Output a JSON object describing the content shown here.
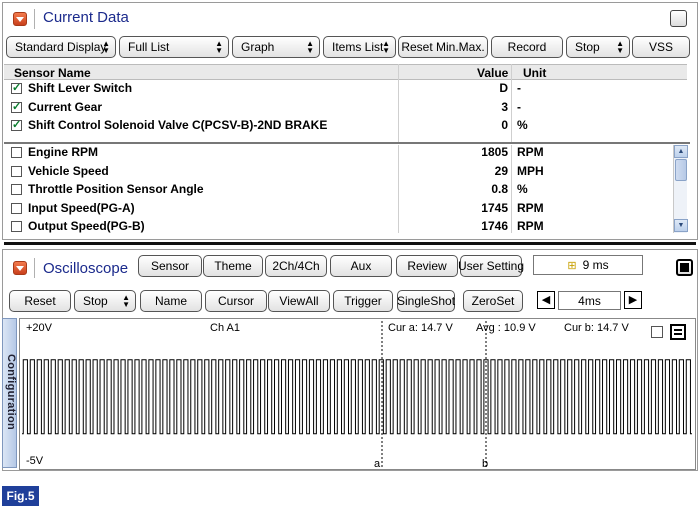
{
  "current_data": {
    "title": "Current Data",
    "toolbar": [
      {
        "label": "Standard Display",
        "dropdown": true
      },
      {
        "label": "Full List",
        "dropdown": true
      },
      {
        "label": "Graph",
        "dropdown": true
      },
      {
        "label": "Items List",
        "dropdown": true
      },
      {
        "label": "Reset Min.Max.",
        "dropdown": false
      },
      {
        "label": "Record",
        "dropdown": false
      },
      {
        "label": "Stop",
        "dropdown": true
      },
      {
        "label": "VSS",
        "dropdown": false
      }
    ],
    "columns": {
      "name": "Sensor Name",
      "value": "Value",
      "unit": "Unit"
    },
    "pinned_rows": [
      {
        "name": "Shift Lever Switch",
        "value": "D",
        "unit": "-",
        "checked": true
      },
      {
        "name": "Current Gear",
        "value": "3",
        "unit": "-",
        "checked": true
      },
      {
        "name": "Shift Control Solenoid Valve C(PCSV-B)-2ND BRAKE",
        "value": "0",
        "unit": "%",
        "checked": true
      }
    ],
    "rows": [
      {
        "name": "Engine RPM",
        "value": "1805",
        "unit": "RPM",
        "checked": false
      },
      {
        "name": "Vehicle Speed",
        "value": "29",
        "unit": "MPH",
        "checked": false
      },
      {
        "name": "Throttle Position Sensor Angle",
        "value": "0.8",
        "unit": "%",
        "checked": false
      },
      {
        "name": "Input Speed(PG-A)",
        "value": "1745",
        "unit": "RPM",
        "checked": false
      },
      {
        "name": "Output Speed(PG-B)",
        "value": "1746",
        "unit": "RPM",
        "checked": false
      }
    ]
  },
  "oscilloscope": {
    "title": "Oscilloscope",
    "toolbar1": [
      "Sensor",
      "Theme",
      "2Ch/4Ch",
      "Aux",
      "Review",
      "User Setting"
    ],
    "timebase_top": "9 ms",
    "toolbar2": [
      {
        "label": "Reset",
        "dropdown": false
      },
      {
        "label": "Stop",
        "dropdown": true
      },
      {
        "label": "Name",
        "dropdown": false
      },
      {
        "label": "Cursor",
        "dropdown": false
      },
      {
        "label": "ViewAll",
        "dropdown": false
      },
      {
        "label": "Trigger",
        "dropdown": false
      },
      {
        "label": "SingleShot",
        "dropdown": false
      },
      {
        "label": "ZeroSet",
        "dropdown": false
      }
    ],
    "timebase": "4ms",
    "config_tab": "Configuration",
    "scope": {
      "vmax_label": "+20V",
      "vmin_label": "-5V",
      "channel": "Ch A1",
      "cur_a": "Cur a: 14.7 V",
      "avg": "Avg : 10.9 V",
      "cur_b": "Cur b: 14.7 V",
      "cursor_a": "a",
      "cursor_b": "b",
      "signal": {
        "cycles": 96,
        "high_v": 14.7,
        "low_v": 0,
        "vmax": 20,
        "vmin": -5
      }
    }
  },
  "figure_label": "Fig.5",
  "colors": {
    "title": "#1b2a8c",
    "accent_icon": "#e0582c",
    "badge": "#1f3f9a",
    "check": "#0b7d2e"
  }
}
